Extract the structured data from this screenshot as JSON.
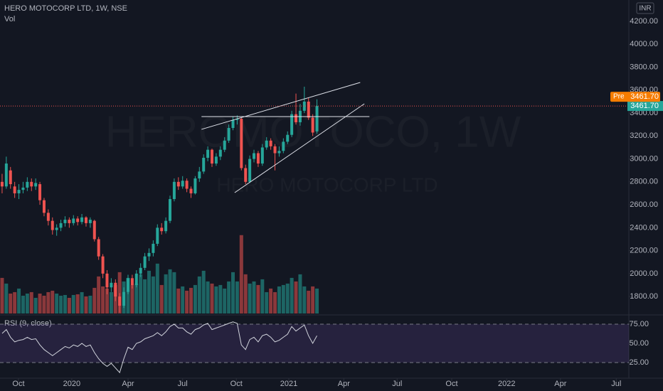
{
  "chart_data": {
    "type": "candlestick",
    "title": "HERO MOTOCORP LTD, 1W, NSE",
    "volume_label": "Vol",
    "currency": "INR",
    "watermark": [
      "HEROMOTOCO, 1W",
      "HERO MOTOCORP LTD"
    ],
    "up_color": "#26a69a",
    "down_color": "#ef5350",
    "categories": [
      null,
      null,
      null,
      null,
      null,
      null,
      null,
      null,
      null,
      null,
      null,
      null,
      null,
      null,
      null,
      null,
      null,
      null,
      null,
      null,
      null,
      null,
      null,
      null,
      null,
      null,
      null,
      null,
      null,
      null,
      null,
      null,
      null,
      null,
      null,
      null,
      null,
      null,
      null,
      null,
      null,
      null,
      null,
      null,
      null,
      null,
      null,
      null,
      null,
      null,
      null,
      null,
      null,
      null,
      null,
      null,
      null,
      null,
      null,
      null,
      null,
      null,
      null,
      null,
      null,
      null,
      null,
      null,
      null,
      null,
      null,
      null,
      null,
      null,
      null,
      null
    ],
    "open": [
      2800,
      2760,
      2900,
      2760,
      2700,
      2730,
      2750,
      2800,
      2760,
      2780,
      2640,
      2530,
      2460,
      2380,
      2400,
      2440,
      2470,
      2440,
      2480,
      2450,
      2490,
      2440,
      2460,
      2300,
      2150,
      2000,
      1880,
      1920,
      1800,
      1720,
      1840,
      1960,
      1900,
      2000,
      2050,
      2150,
      2180,
      2260,
      2400,
      2370,
      2460,
      2650,
      2800,
      2760,
      2810,
      2740,
      2700,
      2830,
      2890,
      3010,
      3080,
      2960,
      3020,
      3080,
      3160,
      3270,
      3340,
      3350,
      2920,
      2800,
      3000,
      3050,
      2960,
      3100,
      3160,
      3110,
      3050,
      3070,
      3150,
      3210,
      3390,
      3320,
      3420,
      3500,
      3360,
      3240
    ],
    "high": [
      2870,
      3020,
      2930,
      2800,
      2780,
      2800,
      2840,
      2830,
      2830,
      2800,
      2660,
      2560,
      2490,
      2430,
      2470,
      2500,
      2490,
      2510,
      2500,
      2520,
      2500,
      2490,
      2470,
      2320,
      2170,
      2030,
      1960,
      1950,
      1830,
      1880,
      1990,
      1990,
      2030,
      2090,
      2180,
      2220,
      2290,
      2430,
      2440,
      2490,
      2680,
      2830,
      2840,
      2850,
      2830,
      2760,
      2850,
      2930,
      3040,
      3110,
      3090,
      3050,
      3110,
      3190,
      3300,
      3370,
      3380,
      3360,
      2950,
      3030,
      3080,
      3070,
      3130,
      3190,
      3180,
      3130,
      3110,
      3180,
      3240,
      3420,
      3570,
      3480,
      3630,
      3530,
      3390,
      3520
    ],
    "low": [
      2700,
      2740,
      2740,
      2660,
      2650,
      2700,
      2720,
      2720,
      2730,
      2600,
      2500,
      2420,
      2340,
      2330,
      2370,
      2410,
      2400,
      2420,
      2420,
      2430,
      2410,
      2400,
      2280,
      2120,
      1960,
      1820,
      1840,
      1760,
      1660,
      1700,
      1820,
      1870,
      1880,
      1970,
      2030,
      2110,
      2150,
      2240,
      2340,
      2350,
      2440,
      2630,
      2730,
      2740,
      2710,
      2660,
      2690,
      2800,
      2870,
      2980,
      2930,
      2940,
      2990,
      3060,
      3140,
      3250,
      3300,
      2900,
      2780,
      2790,
      2970,
      2930,
      2940,
      3080,
      3080,
      2900,
      3020,
      3050,
      3130,
      3190,
      3300,
      3290,
      3400,
      3340,
      3200,
      3220
    ],
    "close": [
      2760,
      2960,
      2780,
      2700,
      2730,
      2750,
      2800,
      2760,
      2790,
      2640,
      2530,
      2460,
      2380,
      2400,
      2440,
      2470,
      2440,
      2480,
      2450,
      2490,
      2440,
      2470,
      2300,
      2150,
      2000,
      1880,
      1920,
      1800,
      1720,
      1840,
      1960,
      1900,
      2000,
      2050,
      2150,
      2180,
      2260,
      2400,
      2370,
      2460,
      2650,
      2800,
      2760,
      2810,
      2740,
      2700,
      2830,
      2890,
      3010,
      3080,
      2960,
      3020,
      3080,
      3160,
      3270,
      3340,
      3350,
      2920,
      2800,
      3000,
      3050,
      2960,
      3100,
      3160,
      3110,
      3050,
      3070,
      3150,
      3210,
      3390,
      3320,
      3420,
      3500,
      3360,
      3230,
      3461.7
    ],
    "volume": [
      50,
      42,
      28,
      30,
      35,
      25,
      28,
      30,
      22,
      28,
      25,
      30,
      32,
      28,
      25,
      26,
      22,
      26,
      27,
      30,
      24,
      25,
      36,
      52,
      38,
      35,
      30,
      40,
      58,
      45,
      50,
      40,
      42,
      55,
      48,
      60,
      52,
      70,
      40,
      55,
      62,
      58,
      35,
      38,
      32,
      36,
      40,
      52,
      60,
      45,
      42,
      38,
      40,
      35,
      45,
      58,
      45,
      110,
      55,
      42,
      45,
      40,
      48,
      30,
      35,
      30,
      38,
      40,
      42,
      50,
      45,
      55,
      38,
      32,
      38,
      35
    ],
    "vlim": [
      0,
      440
    ],
    "xlim": [
      -0.5,
      149.3
    ],
    "xticks": [
      {
        "value": 3.9,
        "label": "Oct"
      },
      {
        "value": 16.6,
        "label": "2020"
      },
      {
        "value": 30,
        "label": "Apr"
      },
      {
        "value": 43,
        "label": "Jul"
      },
      {
        "value": 55.8,
        "label": "Oct"
      },
      {
        "value": 68.3,
        "label": "2021"
      },
      {
        "value": 81.4,
        "label": "Apr"
      },
      {
        "value": 94.1,
        "label": "Jul"
      },
      {
        "value": 107.1,
        "label": "Oct"
      },
      {
        "value": 120.2,
        "label": "2022"
      },
      {
        "value": 133,
        "label": "Apr"
      },
      {
        "value": 146.3,
        "label": "Jul"
      }
    ],
    "ylim": [
      1652,
      4386
    ],
    "yticks": [
      {
        "value": 1800,
        "label": "1800.00"
      },
      {
        "value": 2000,
        "label": "2000.00"
      },
      {
        "value": 2200,
        "label": "2200.00"
      },
      {
        "value": 2400,
        "label": "2400.00"
      },
      {
        "value": 2600,
        "label": "2600.00"
      },
      {
        "value": 2800,
        "label": "2800.00"
      },
      {
        "value": 3000,
        "label": "3000.00"
      },
      {
        "value": 3200,
        "label": "3200.00"
      },
      {
        "value": 3400,
        "label": "3400.00"
      },
      {
        "value": 3600,
        "label": "3600.00"
      },
      {
        "value": 3800,
        "label": "3800.00"
      },
      {
        "value": 4000,
        "label": "4000.00"
      },
      {
        "value": 4200,
        "label": "4200.00"
      }
    ],
    "last_price": {
      "value": 3461.7,
      "label": "3461.70"
    },
    "premarket": {
      "label": "Pre",
      "price": {
        "value": 3461.7,
        "label": "3461.70"
      }
    },
    "trendlines": [
      {
        "x": [
          47.5,
          85.3
        ],
        "y": [
          3258,
          3667
        ]
      },
      {
        "x": [
          47.5,
          87.5
        ],
        "y": [
          3369,
          3369
        ]
      },
      {
        "x": [
          55.4,
          86.3
        ],
        "y": [
          2706,
          3481
        ]
      }
    ],
    "rsi": {
      "title": "RSI (9, close)",
      "color": "#d1d4dc",
      "values": [
        63,
        68,
        58,
        52,
        54,
        55,
        58,
        55,
        56,
        48,
        42,
        38,
        34,
        38,
        42,
        46,
        44,
        48,
        46,
        50,
        46,
        48,
        38,
        30,
        24,
        20,
        24,
        18,
        12,
        30,
        45,
        42,
        50,
        52,
        56,
        58,
        60,
        64,
        60,
        65,
        72,
        75,
        70,
        70,
        65,
        62,
        68,
        70,
        74,
        76,
        68,
        70,
        72,
        74,
        76,
        78,
        76,
        48,
        42,
        55,
        58,
        52,
        60,
        62,
        58,
        52,
        54,
        58,
        62,
        72,
        66,
        70,
        74,
        60,
        50,
        60
      ],
      "ylim": [
        9.3,
        85.2
      ],
      "yticks": [
        {
          "value": 25,
          "label": "25.00"
        },
        {
          "value": 50,
          "label": "50.00"
        },
        {
          "value": 75,
          "label": "75.00"
        }
      ],
      "band": [
        25,
        75
      ]
    }
  }
}
